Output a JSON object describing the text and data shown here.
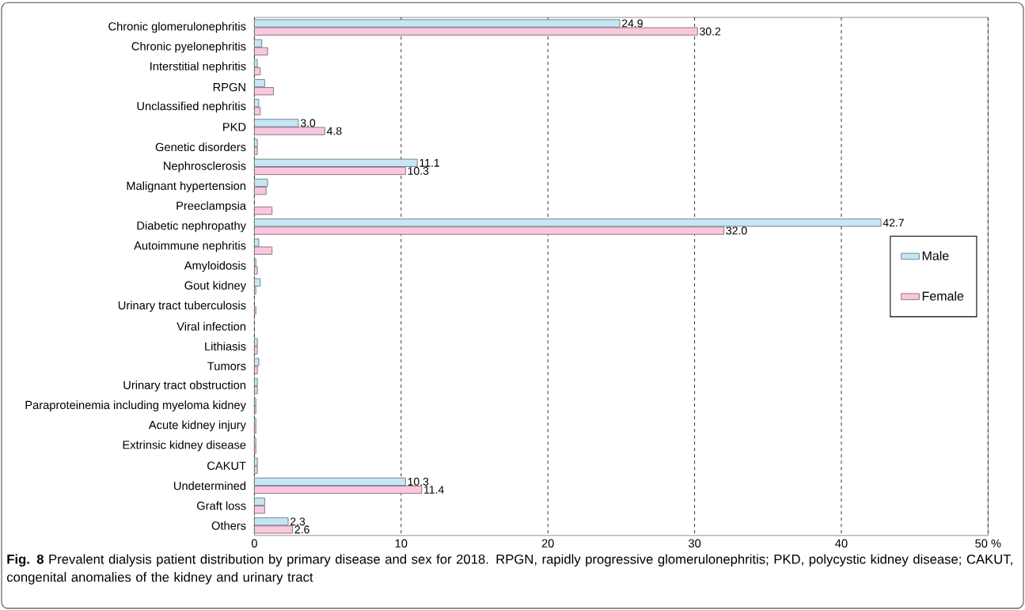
{
  "chart_data": {
    "type": "bar",
    "orientation": "horizontal",
    "categories": [
      "Chronic glomerulonephritis",
      "Chronic pyelonephritis",
      "Interstitial nephritis",
      "RPGN",
      "Unclassified nephritis",
      "PKD",
      "Genetic disorders",
      "Nephrosclerosis",
      "Malignant hypertension",
      "Preeclampsia",
      "Diabetic nephropathy",
      "Autoimmune nephritis",
      "Amyloidosis",
      "Gout kidney",
      "Urinary tract tuberculosis",
      "Viral infection",
      "Lithiasis",
      "Tumors",
      "Urinary tract obstruction",
      "Paraproteinemia including myeloma kidney",
      "Acute kidney injury",
      "Extrinsic kidney disease",
      "CAKUT",
      "Undetermined",
      "Graft loss",
      "Others"
    ],
    "series": [
      {
        "name": "Male",
        "color": "#c6e6f5",
        "values": [
          24.9,
          0.5,
          0.2,
          0.7,
          0.3,
          3.0,
          0.2,
          11.1,
          0.9,
          0,
          42.7,
          0.3,
          0.1,
          0.4,
          0,
          0,
          0.2,
          0.3,
          0.2,
          0.1,
          0.1,
          0.1,
          0.2,
          10.3,
          0.7,
          2.3
        ],
        "value_labels": [
          "24.9",
          null,
          null,
          null,
          null,
          "3.0",
          null,
          "11.1",
          null,
          null,
          "42.7",
          null,
          null,
          null,
          null,
          null,
          null,
          null,
          null,
          null,
          null,
          null,
          null,
          "10.3",
          null,
          "2.3"
        ]
      },
      {
        "name": "Female",
        "color": "#f9c8df",
        "values": [
          30.2,
          0.9,
          0.4,
          1.3,
          0.4,
          4.8,
          0.2,
          10.3,
          0.8,
          1.2,
          32.0,
          1.2,
          0.2,
          0.1,
          0.1,
          0,
          0.2,
          0.2,
          0.2,
          0.1,
          0.1,
          0.1,
          0.2,
          11.4,
          0.7,
          2.6
        ],
        "value_labels": [
          "30.2",
          null,
          null,
          null,
          null,
          "4.8",
          null,
          "10.3",
          null,
          null,
          "32.0",
          null,
          null,
          null,
          null,
          null,
          null,
          null,
          null,
          null,
          null,
          null,
          null,
          "11.4",
          null,
          "2.6"
        ]
      }
    ],
    "xlim": [
      0,
      50
    ],
    "xticks": [
      0,
      10,
      20,
      30,
      40,
      {
        "value": 50,
        "label": "50 %"
      }
    ],
    "grid": "x",
    "legend": "right",
    "annotations": [
      "**Fig. 8** Prevalent dialysis patient distribution by primary disease and sex for 2018. RPGN, rapidly progressive glomerulonephritis; PKD, polycystic kidney disease; CAKUT, congenital anomalies of the kidney and urinary tract"
    ]
  }
}
